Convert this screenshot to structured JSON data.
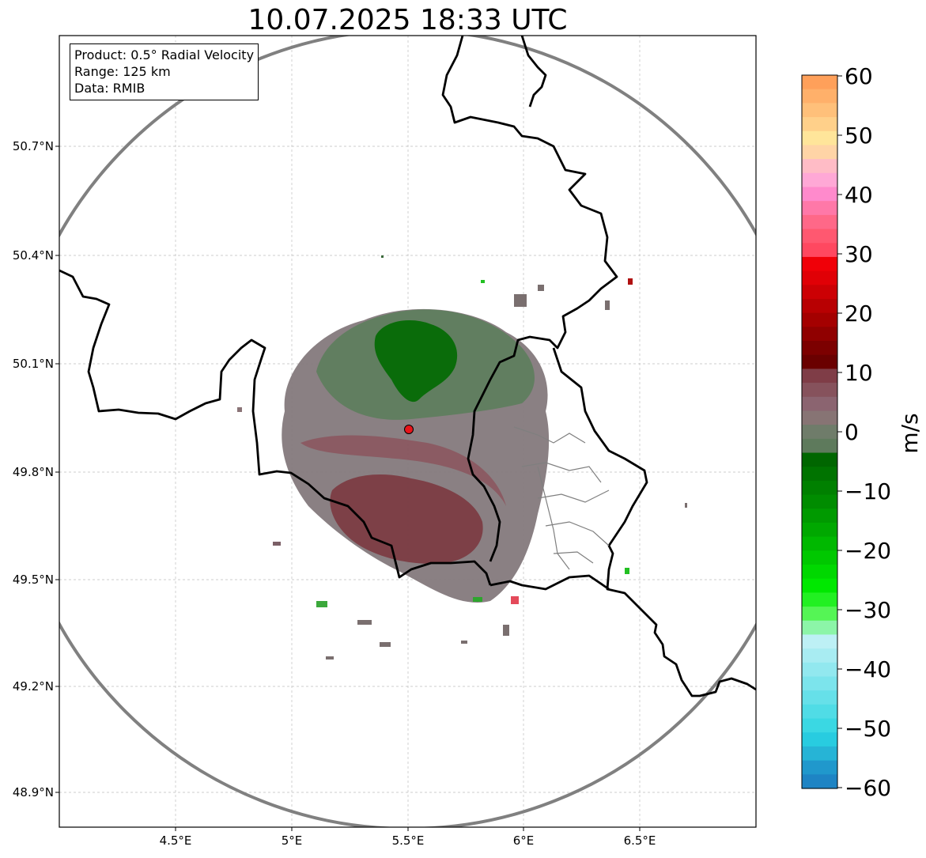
{
  "title": "10.07.2025 18:33 UTC",
  "info_box": {
    "product": "Product: 0.5° Radial Velocity",
    "range": "Range: 125 km",
    "data": "Data: RMIB"
  },
  "axes": {
    "lat_labels": [
      "50.7°N",
      "50.4°N",
      "50.1°N",
      "49.8°N",
      "49.5°N",
      "49.2°N",
      "48.9°N"
    ],
    "lon_labels": [
      "4.5°E",
      "5°E",
      "5.5°E",
      "6°E",
      "6.5°E"
    ],
    "grid": true
  },
  "radar_site": {
    "label": "",
    "lon": 5.5,
    "lat": 49.91,
    "color": "#e8141a"
  },
  "range_ring_km": 125,
  "colorbar": {
    "unit": "m/s",
    "min": -60,
    "max": 60,
    "tick_labels": [
      "60",
      "50",
      "40",
      "30",
      "20",
      "10",
      "0",
      "−10",
      "−20",
      "−30",
      "−40",
      "−50",
      "−60"
    ]
  },
  "colors": {
    "inbound_strong": "#1f7fc6",
    "inbound_green": "#008a00",
    "near_zero": "#7a6f6f",
    "outbound_red": "#e8000a",
    "outbound_pink": "#ff8acc",
    "outbound_orange": "#ffa05a",
    "border": "#000000",
    "range_ring": "#808080"
  }
}
